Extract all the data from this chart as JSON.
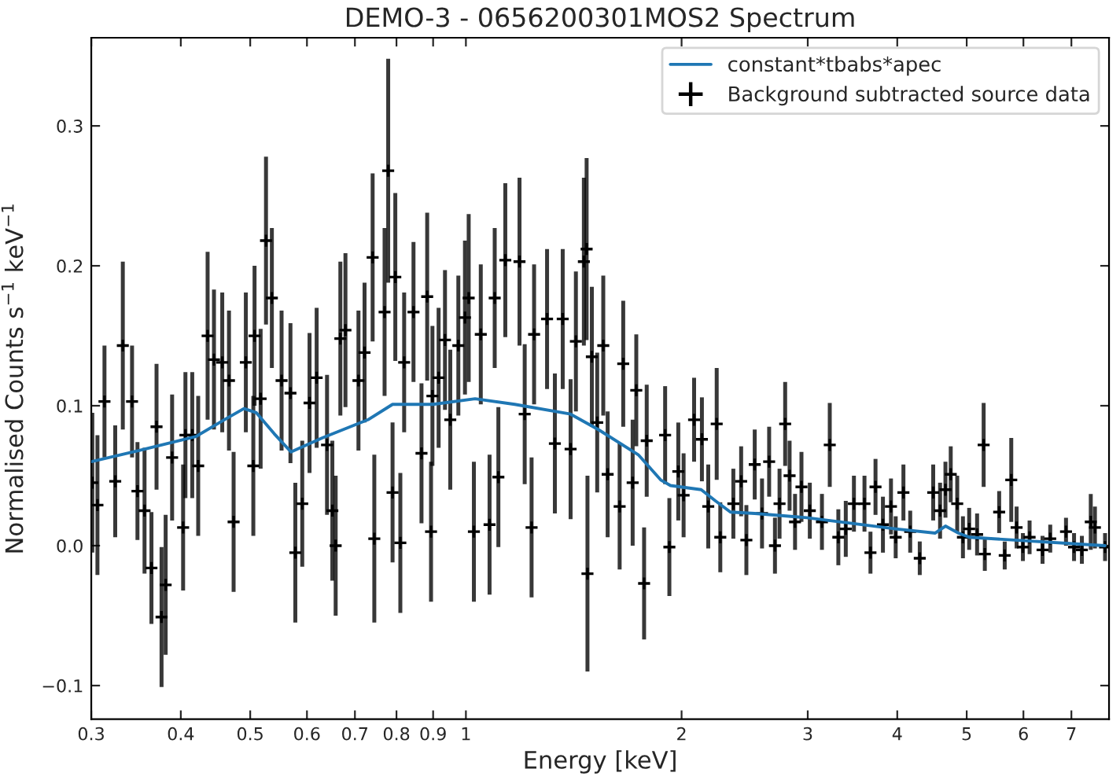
{
  "chart_data": {
    "type": "scatter",
    "title": "DEMO-3 - 0656200301MOS2 Spectrum",
    "xlabel": "Energy [keV]",
    "ylabel": "Normalised Counts s$^{−1}$ keV$^{−1}$",
    "log": "x",
    "xlim": [
      0.3,
      7.9
    ],
    "ylim": [
      -0.124,
      0.363
    ],
    "xticks": [
      0.3,
      0.4,
      0.5,
      0.6,
      0.7,
      0.8,
      0.9,
      1,
      2,
      3,
      4,
      5,
      6,
      7
    ],
    "yticks": [
      {
        "value": -0.1,
        "label": "−0.1"
      },
      {
        "value": 0,
        "label": "0.0"
      },
      0.1,
      0.2,
      0.3
    ],
    "legend": "top right",
    "series": [
      {
        "name": "constant*tbabs*apec",
        "type": "line",
        "color": "#1f77b4",
        "line_style": "solid",
        "x": [
          0.3,
          0.35,
          0.42,
          0.46,
          0.49,
          0.51,
          0.54,
          0.57,
          0.63,
          0.73,
          0.79,
          0.9,
          1.03,
          1.17,
          1.4,
          1.53,
          1.74,
          1.87,
          1.93,
          2.13,
          2.23,
          2.34,
          2.53,
          2.99,
          3.98,
          4.52,
          4.67,
          4.87,
          5.04,
          7.8
        ],
        "values": [
          0.06,
          0.068,
          0.078,
          0.09,
          0.098,
          0.095,
          0.08,
          0.067,
          0.077,
          0.09,
          0.101,
          0.101,
          0.105,
          0.101,
          0.094,
          0.083,
          0.065,
          0.047,
          0.043,
          0.04,
          0.032,
          0.024,
          0.023,
          0.02,
          0.012,
          0.009,
          0.014,
          0.009,
          0.006,
          0.0
        ]
      },
      {
        "name": "Background subtracted source data",
        "color": "#000000",
        "marker": "cross",
        "x": [
          0.301,
          0.306,
          0.313,
          0.324,
          0.332,
          0.342,
          0.348,
          0.356,
          0.364,
          0.37,
          0.376,
          0.381,
          0.389,
          0.403,
          0.406,
          0.415,
          0.423,
          0.436,
          0.445,
          0.457,
          0.467,
          0.474,
          0.493,
          0.505,
          0.507,
          0.517,
          0.526,
          0.536,
          0.553,
          0.569,
          0.578,
          0.591,
          0.605,
          0.619,
          0.64,
          0.651,
          0.658,
          0.668,
          0.679,
          0.708,
          0.722,
          0.741,
          0.745,
          0.77,
          0.779,
          0.79,
          0.797,
          0.81,
          0.82,
          0.845,
          0.867,
          0.883,
          0.894,
          0.898,
          0.916,
          0.935,
          0.951,
          0.976,
          0.997,
          1.009,
          1.026,
          1.049,
          1.079,
          1.097,
          1.11,
          1.135,
          1.188,
          1.208,
          1.235,
          1.245,
          1.298,
          1.331,
          1.365,
          1.4,
          1.424,
          1.461,
          1.474,
          1.478,
          1.499,
          1.525,
          1.555,
          1.577,
          1.639,
          1.658,
          1.709,
          1.729,
          1.773,
          1.788,
          1.897,
          1.923,
          1.979,
          2.013,
          2.082,
          2.135,
          2.179,
          2.239,
          2.265,
          2.362,
          2.422,
          2.463,
          2.53,
          2.59,
          2.65,
          2.7,
          2.74,
          2.79,
          2.83,
          2.88,
          2.94,
          3.02,
          3.14,
          3.22,
          3.31,
          3.39,
          3.48,
          3.6,
          3.67,
          3.73,
          3.82,
          3.92,
          3.98,
          4.08,
          4.17,
          4.3,
          4.49,
          4.59,
          4.67,
          4.75,
          4.85,
          4.94,
          5.04,
          5.17,
          5.28,
          5.3,
          5.55,
          5.65,
          5.77,
          5.87,
          5.99,
          6.12,
          6.38,
          6.54,
          6.88,
          7.06,
          7.24,
          7.45,
          7.55,
          7.8
        ],
        "values": [
          0.045,
          0.029,
          0.103,
          0.046,
          0.143,
          0.103,
          0.039,
          0.025,
          -0.016,
          0.085,
          -0.051,
          -0.028,
          0.063,
          0.013,
          0.079,
          0.079,
          0.057,
          0.15,
          0.133,
          0.131,
          0.118,
          0.017,
          0.131,
          0.057,
          0.15,
          0.105,
          0.218,
          0.177,
          0.118,
          0.109,
          -0.005,
          0.03,
          0.102,
          0.12,
          0.072,
          0.025,
          0.0,
          0.148,
          0.154,
          0.118,
          0.138,
          0.206,
          0.005,
          0.167,
          0.268,
          0.038,
          0.192,
          0.002,
          0.131,
          0.167,
          0.066,
          0.178,
          0.01,
          0.107,
          0.12,
          0.147,
          0.09,
          0.143,
          0.163,
          0.177,
          0.01,
          0.151,
          0.015,
          0.177,
          0.049,
          0.204,
          0.203,
          0.094,
          0.013,
          0.151,
          0.162,
          0.073,
          0.162,
          0.069,
          0.146,
          0.203,
          0.212,
          -0.02,
          0.135,
          0.088,
          0.143,
          0.051,
          0.028,
          0.13,
          0.045,
          0.111,
          -0.027,
          0.075,
          0.079,
          -0.001,
          0.053,
          0.036,
          0.09,
          0.076,
          0.028,
          0.087,
          0.006,
          0.03,
          0.046,
          0.004,
          0.058,
          0.023,
          0.06,
          0.0,
          0.03,
          0.087,
          0.05,
          0.017,
          0.042,
          0.025,
          0.017,
          0.072,
          0.006,
          0.012,
          0.03,
          0.03,
          -0.005,
          0.042,
          0.015,
          0.028,
          0.006,
          0.038,
          0.01,
          -0.009,
          0.038,
          0.025,
          0.04,
          0.051,
          0.03,
          0.006,
          0.012,
          0.008,
          0.072,
          -0.006,
          0.024,
          -0.007,
          0.047,
          0.013,
          -0.001,
          0.006,
          -0.003,
          0.005,
          0.01,
          -0.001,
          -0.003,
          0.017,
          0.013,
          -0.001
        ],
        "errors": [
          0.05,
          0.05,
          0.04,
          0.04,
          0.06,
          0.04,
          0.035,
          0.045,
          0.04,
          0.045,
          0.05,
          0.05,
          0.045,
          0.045,
          0.045,
          0.045,
          0.05,
          0.06,
          0.05,
          0.05,
          0.05,
          0.05,
          0.05,
          0.05,
          0.05,
          0.05,
          0.06,
          0.05,
          0.05,
          0.05,
          0.05,
          0.045,
          0.05,
          0.05,
          0.05,
          0.05,
          0.05,
          0.055,
          0.055,
          0.05,
          0.05,
          0.06,
          0.06,
          0.06,
          0.08,
          0.05,
          0.06,
          0.05,
          0.05,
          0.05,
          0.05,
          0.06,
          0.05,
          0.05,
          0.05,
          0.05,
          0.05,
          0.05,
          0.055,
          0.06,
          0.05,
          0.05,
          0.05,
          0.05,
          0.05,
          0.055,
          0.06,
          0.05,
          0.05,
          0.05,
          0.05,
          0.05,
          0.05,
          0.05,
          0.05,
          0.06,
          0.065,
          0.07,
          0.05,
          0.05,
          0.05,
          0.045,
          0.045,
          0.045,
          0.045,
          0.04,
          0.04,
          0.04,
          0.035,
          0.035,
          0.035,
          0.03,
          0.03,
          0.03,
          0.03,
          0.04,
          0.025,
          0.025,
          0.025,
          0.025,
          0.025,
          0.025,
          0.025,
          0.02,
          0.025,
          0.03,
          0.025,
          0.02,
          0.025,
          0.02,
          0.02,
          0.03,
          0.02,
          0.02,
          0.02,
          0.02,
          0.015,
          0.02,
          0.02,
          0.02,
          0.015,
          0.02,
          0.015,
          0.012,
          0.02,
          0.02,
          0.02,
          0.02,
          0.02,
          0.015,
          0.015,
          0.015,
          0.03,
          0.012,
          0.015,
          0.01,
          0.03,
          0.015,
          0.01,
          0.012,
          0.01,
          0.01,
          0.01,
          0.01,
          0.01,
          0.02,
          0.015,
          0.01
        ]
      }
    ]
  }
}
